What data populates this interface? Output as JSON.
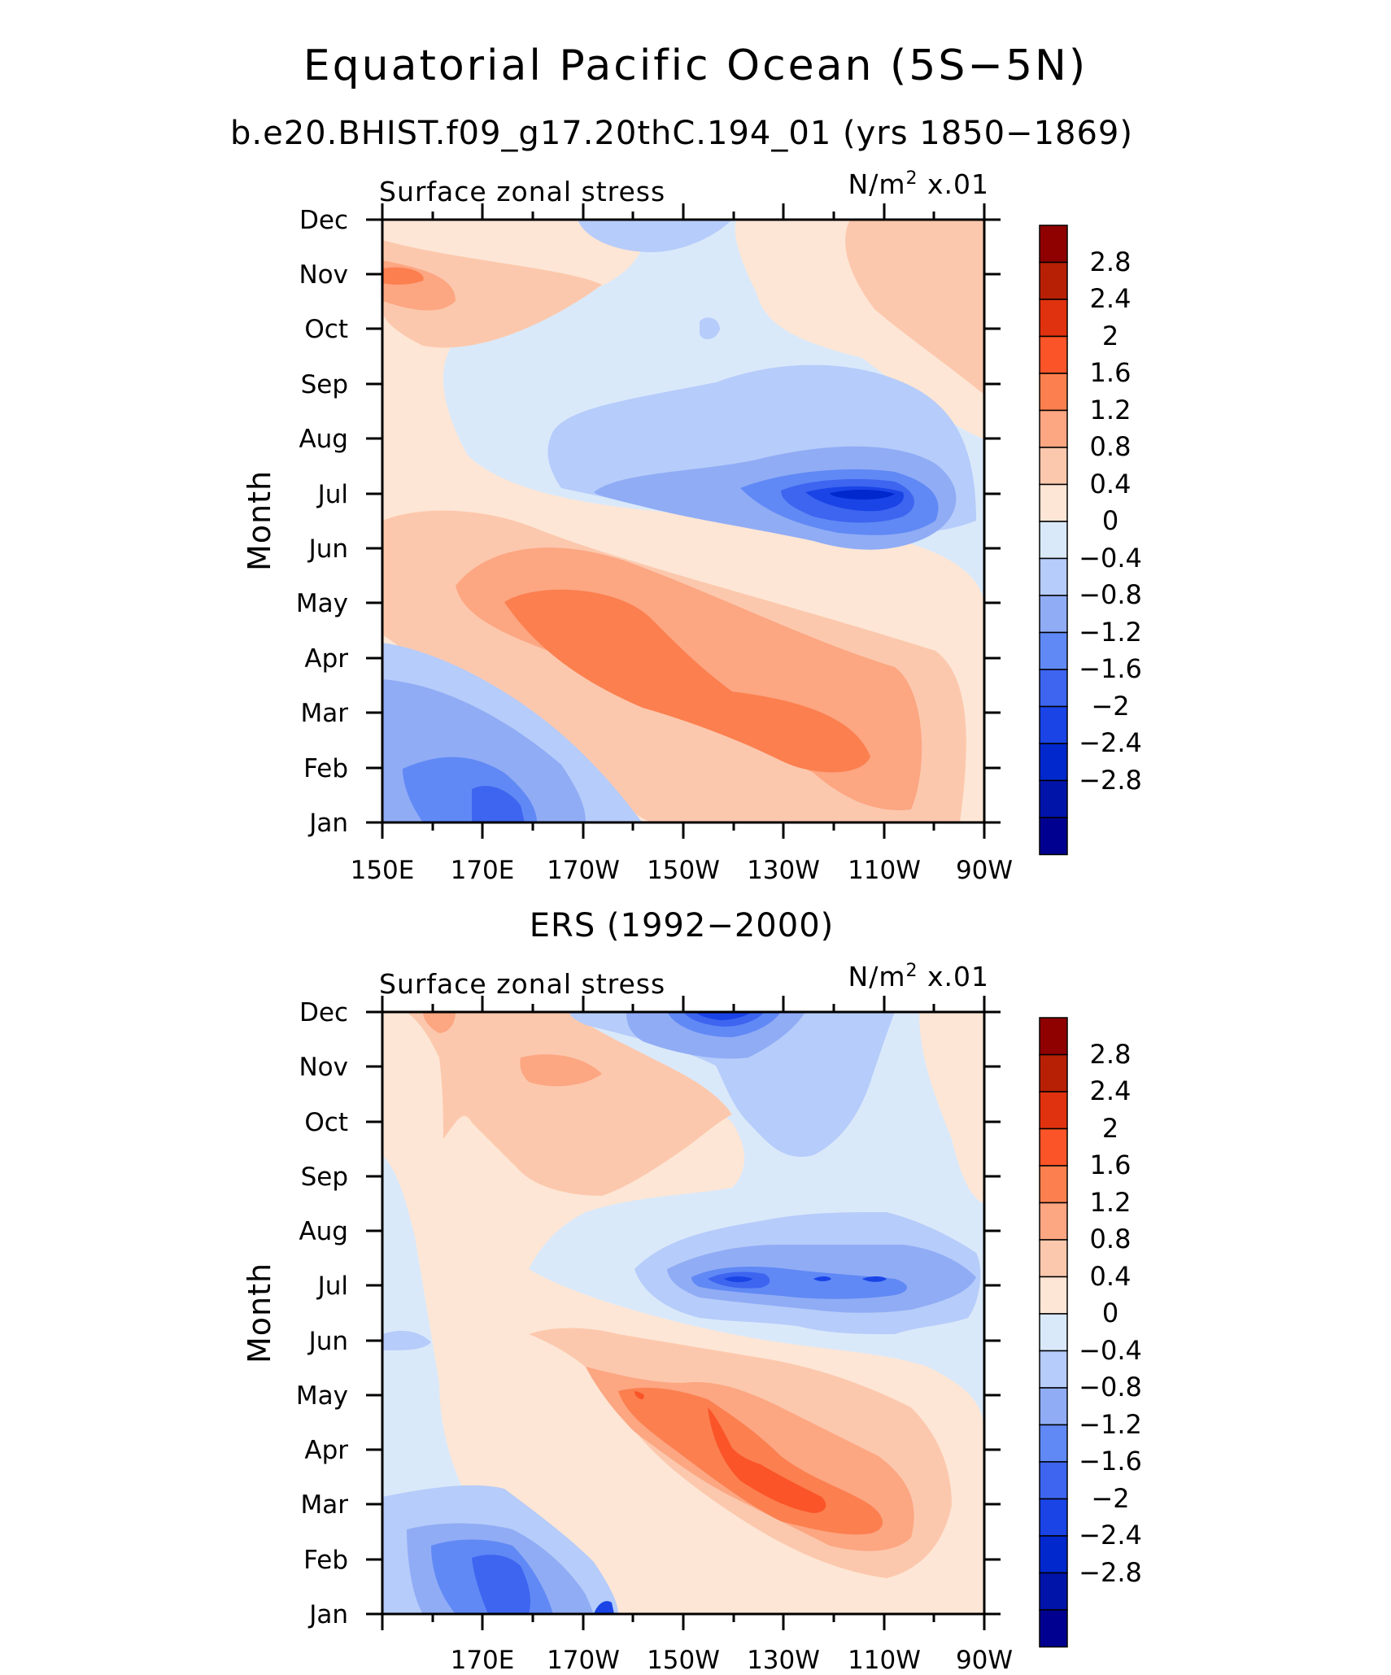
{
  "title": "Equatorial Pacific Ocean (5S−5N)",
  "chart_data": [
    {
      "type": "heatmap",
      "subtitle": "b.e20.BHIST.f09_g17.20thC.194_01 (yrs 1850−1869)",
      "left_label": "Surface zonal stress",
      "units_base": "N/m",
      "units_exp": "2",
      "units_scale": "x.01",
      "ylabel": "Month",
      "x_ticks": [
        "150E",
        "170E",
        "170W",
        "150W",
        "130W",
        "110W",
        "90W"
      ],
      "y_ticks": [
        "Jan",
        "Feb",
        "Mar",
        "Apr",
        "May",
        "Jun",
        "Jul",
        "Aug",
        "Sep",
        "Oct",
        "Nov",
        "Dec"
      ],
      "xlim": [
        150,
        270
      ],
      "zlim": [
        -3.2,
        3.2
      ],
      "contour_step": 0.4,
      "colorbar_labels": [
        "2.8",
        "2.4",
        "2",
        "1.6",
        "1.2",
        "0.8",
        "0.4",
        "0",
        "−0.4",
        "−0.8",
        "−1.2",
        "−1.6",
        "−2",
        "−2.4",
        "−2.8"
      ],
      "approx_features": [
        {
          "lon": 158,
          "month": 10.9,
          "value": 1.4
        },
        {
          "lon": 255,
          "month": 10.5,
          "value": 0.5
        },
        {
          "lon": 232,
          "month": 6.0,
          "value": -2.9
        },
        {
          "lon": 205,
          "month": 3.5,
          "value": 1.6
        },
        {
          "lon": 228,
          "month": 2.1,
          "value": 1.7
        },
        {
          "lon": 172,
          "month": 0.7,
          "value": -1.7
        }
      ]
    },
    {
      "type": "heatmap",
      "subtitle": "ERS (1992−2000)",
      "left_label": "Surface zonal stress",
      "units_base": "N/m",
      "units_exp": "2",
      "units_scale": "x.01",
      "ylabel": "Month",
      "x_ticks": [
        "170E",
        "170W",
        "150W",
        "130W",
        "110W",
        "90W"
      ],
      "y_ticks": [
        "Jan",
        "Feb",
        "Mar",
        "Apr",
        "May",
        "Jun",
        "Jul",
        "Aug",
        "Sep",
        "Oct",
        "Nov",
        "Dec"
      ],
      "xlim": [
        150,
        270
      ],
      "zlim": [
        -3.2,
        3.2
      ],
      "contour_step": 0.4,
      "colorbar_labels": [
        "2.8",
        "2.4",
        "2",
        "1.6",
        "1.2",
        "0.8",
        "0.4",
        "0",
        "−0.4",
        "−0.8",
        "−1.2",
        "−1.6",
        "−2",
        "−2.4",
        "−2.8"
      ],
      "approx_features": [
        {
          "lon": 215,
          "month": 10.9,
          "value": -2.3
        },
        {
          "lon": 183,
          "month": 9.9,
          "value": 1.1
        },
        {
          "lon": 211,
          "month": 5.9,
          "value": -2.0
        },
        {
          "lon": 248,
          "month": 5.9,
          "value": -1.9
        },
        {
          "lon": 217,
          "month": 3.4,
          "value": 1.9
        },
        {
          "lon": 234,
          "month": 2.1,
          "value": 2.0
        },
        {
          "lon": 174,
          "month": 0.6,
          "value": -1.9
        }
      ]
    }
  ],
  "colorbar_colors": [
    "#000090",
    "#0014aa",
    "#0028cd",
    "#1a44e6",
    "#3d65f0",
    "#6089f5",
    "#90acf5",
    "#b6ccfa",
    "#dae9fa",
    "#fde6d5",
    "#fcc8ad",
    "#fca682",
    "#fc7f4f",
    "#fa5428",
    "#e0320e",
    "#b82005",
    "#8f0000"
  ]
}
